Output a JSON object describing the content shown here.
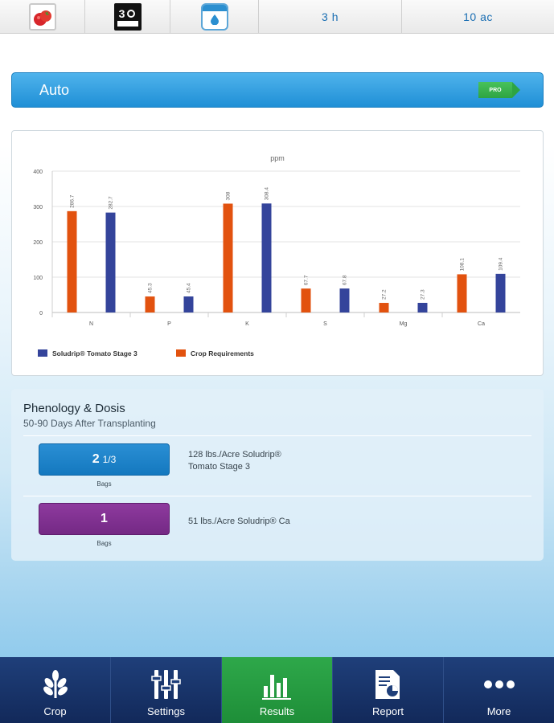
{
  "topbar": {
    "crop_icon": "tomato-icon",
    "stage_icon": "stage-3-icon",
    "stage_number": "3",
    "irrigation_icon": "drip-irrigation-icon",
    "duration": "3 h",
    "area": "10 ac"
  },
  "mode": {
    "label": "Auto",
    "badge": "PRO"
  },
  "chart_data": {
    "type": "bar",
    "title": "ppm",
    "categories": [
      "N",
      "P",
      "K",
      "S",
      "Mg",
      "Ca"
    ],
    "ylim": [
      0,
      400
    ],
    "yticks": [
      "0",
      "100",
      "200",
      "300",
      "400"
    ],
    "series": [
      {
        "name": "Crop Requirements",
        "color": "#e2520f",
        "values": [
          286.7,
          45.3,
          308,
          67.7,
          27.2,
          108.1
        ],
        "labels": [
          "286.7",
          "45.3",
          "308",
          "67.7",
          "27.2",
          "108.1"
        ]
      },
      {
        "name": "Soludrip® Tomato Stage 3",
        "color": "#34449b",
        "values": [
          282.7,
          45.4,
          308.4,
          67.8,
          27.3,
          109.4
        ],
        "labels": [
          "282.7",
          "45.4",
          "308.4",
          "67.8",
          "27.3",
          "109.4"
        ]
      }
    ],
    "legend": [
      "Soludrip® Tomato Stage 3",
      "Crop Requirements"
    ],
    "legend_position": "bottom-left",
    "grid": true
  },
  "phenology": {
    "title": "Phenology & Dosis",
    "subtitle": "50-90 Days After Transplanting",
    "doses": [
      {
        "whole": "2",
        "fraction": "1/3",
        "unit": "Bags",
        "line1": "128 lbs./Acre Soludrip®",
        "line2": "Tomato Stage 3",
        "color": "blue"
      },
      {
        "whole": "1",
        "fraction": "",
        "unit": "Bags",
        "line1": "51 lbs./Acre Soludrip® Ca",
        "line2": "",
        "color": "purple"
      }
    ]
  },
  "nav": [
    {
      "label": "Crop",
      "icon": "leaf-icon",
      "active": false
    },
    {
      "label": "Settings",
      "icon": "sliders-icon",
      "active": false
    },
    {
      "label": "Results",
      "icon": "bar-chart-icon",
      "active": true
    },
    {
      "label": "Report",
      "icon": "report-icon",
      "active": false
    },
    {
      "label": "More",
      "icon": "more-dots-icon",
      "active": false
    }
  ]
}
